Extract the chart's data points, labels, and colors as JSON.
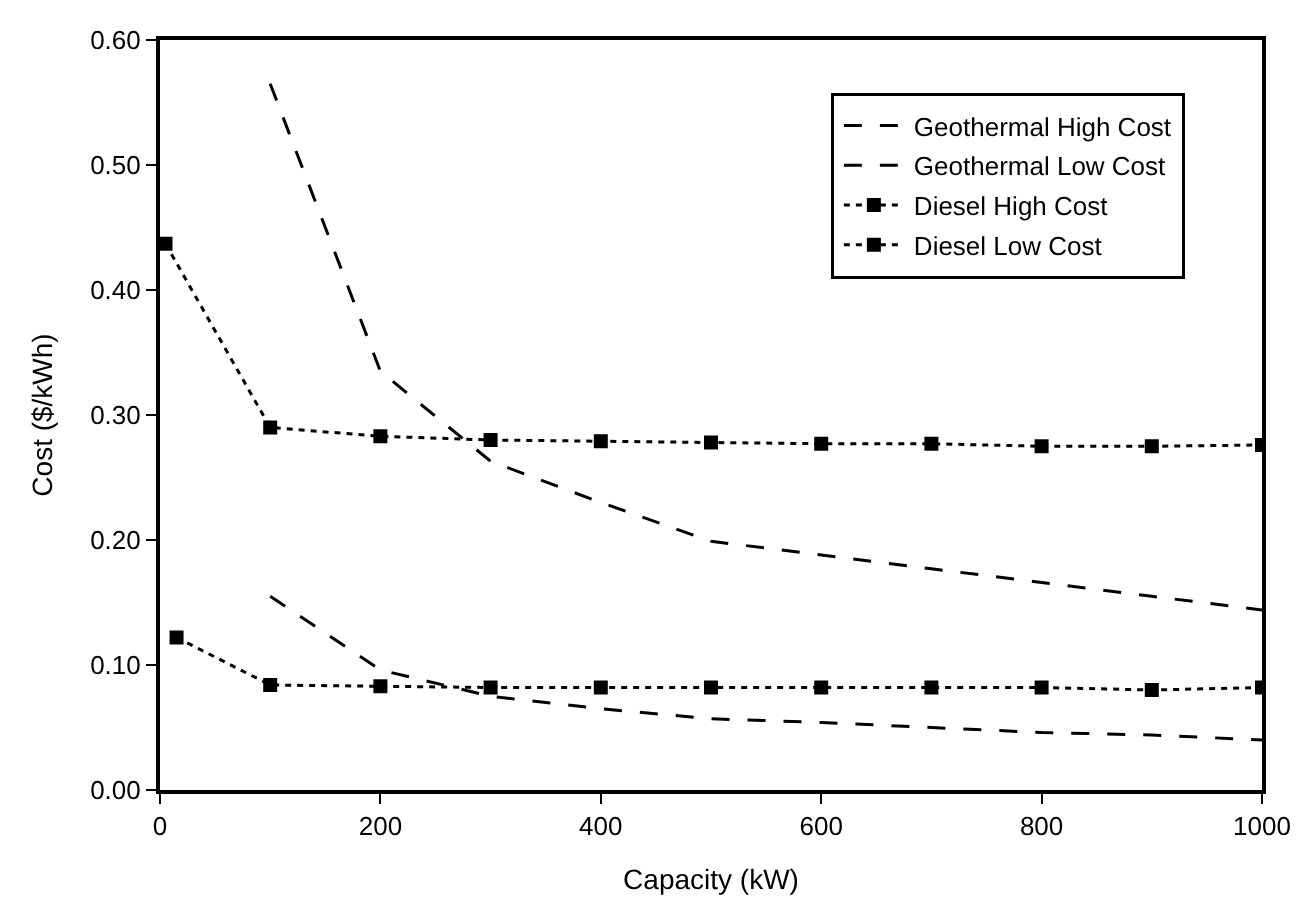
{
  "chart_data": {
    "type": "line",
    "xlabel": "Capacity (kW)",
    "ylabel": "Cost ($/kWh)",
    "xlim": [
      0,
      1000
    ],
    "xticks": [
      0,
      200,
      400,
      600,
      800,
      1000
    ],
    "ylim": [
      0,
      0.6
    ],
    "yticks": [
      {
        "value": 0,
        "label": "0.00"
      },
      {
        "value": 0.1,
        "label": "0.10"
      },
      {
        "value": 0.2,
        "label": "0.20"
      },
      {
        "value": 0.3,
        "label": "0.30"
      },
      {
        "value": 0.4,
        "label": "0.40"
      },
      {
        "value": 0.5,
        "label": "0.50"
      },
      {
        "value": 0.6,
        "label": "0.60"
      }
    ],
    "legend": "top right",
    "series": [
      {
        "name": "Geothermal High Cost",
        "color": "#000000",
        "line_style": "dashed",
        "marker": "none",
        "x": [
          100,
          200,
          300,
          400,
          500,
          600,
          700,
          800,
          900,
          1000
        ],
        "values": [
          0.565,
          0.335,
          0.263,
          0.23,
          0.199,
          0.188,
          0.177,
          0.166,
          0.155,
          0.144
        ]
      },
      {
        "name": "Geothermal Low Cost",
        "color": "#000000",
        "line_style": "dashed",
        "marker": "none",
        "x": [
          100,
          200,
          300,
          400,
          500,
          600,
          700,
          800,
          900,
          1000
        ],
        "values": [
          0.155,
          0.096,
          0.075,
          0.065,
          0.057,
          0.054,
          0.05,
          0.046,
          0.044,
          0.04
        ]
      },
      {
        "name": "Diesel High Cost",
        "color": "#000000",
        "line_style": "dotted",
        "marker": "square",
        "x": [
          5,
          100,
          200,
          300,
          400,
          500,
          600,
          700,
          800,
          900,
          1000
        ],
        "values": [
          0.437,
          0.29,
          0.283,
          0.28,
          0.279,
          0.278,
          0.277,
          0.277,
          0.275,
          0.275,
          0.276
        ]
      },
      {
        "name": "Diesel Low Cost",
        "color": "#000000",
        "line_style": "dotted",
        "marker": "square",
        "x": [
          15,
          100,
          200,
          300,
          400,
          500,
          600,
          700,
          800,
          900,
          1000
        ],
        "values": [
          0.122,
          0.084,
          0.083,
          0.082,
          0.082,
          0.082,
          0.082,
          0.082,
          0.082,
          0.08,
          0.082
        ]
      }
    ]
  }
}
